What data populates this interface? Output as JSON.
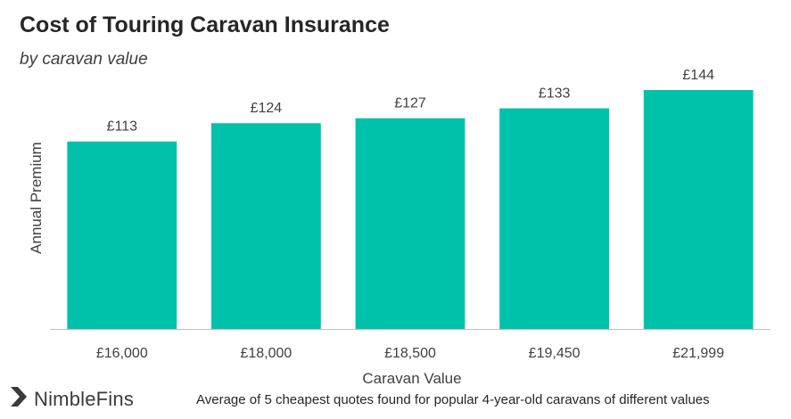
{
  "chart_data": {
    "type": "bar",
    "title": "Cost of Touring Caravan Insurance",
    "subtitle": "by caravan value",
    "xlabel": "Caravan Value",
    "ylabel": "Annual Premium",
    "categories": [
      "£16,000",
      "£18,000",
      "£18,500",
      "£19,450",
      "£21,999"
    ],
    "values": [
      113,
      124,
      127,
      133,
      144
    ],
    "data_labels": [
      "£113",
      "£124",
      "£127",
      "£133",
      "£144"
    ],
    "ylim": [
      0,
      144
    ],
    "grid": false,
    "legend": "none",
    "bar_color": "#00C2AA"
  },
  "branding": {
    "name": "NimbleFins",
    "logo_icon": "nimblefins-chevron-icon",
    "logo_color": "#3a3a3a"
  },
  "footnote": "Average of 5 cheapest quotes found for popular 4-year-old caravans of different values"
}
